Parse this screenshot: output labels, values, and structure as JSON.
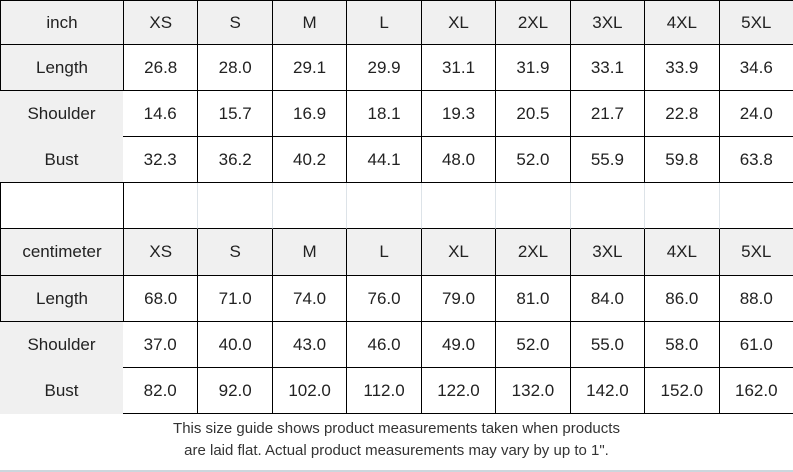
{
  "chart_data": [
    {
      "type": "table",
      "unit": "inch",
      "columns": [
        "XS",
        "S",
        "M",
        "L",
        "XL",
        "2XL",
        "3XL",
        "4XL",
        "5XL"
      ],
      "rows": [
        {
          "label": "Length",
          "values": [
            "26.8",
            "28.0",
            "29.1",
            "29.9",
            "31.1",
            "31.9",
            "33.1",
            "33.9",
            "34.6"
          ]
        },
        {
          "label": "Shoulder",
          "values": [
            "14.6",
            "15.7",
            "16.9",
            "18.1",
            "19.3",
            "20.5",
            "21.7",
            "22.8",
            "24.0"
          ]
        },
        {
          "label": "Bust",
          "values": [
            "32.3",
            "36.2",
            "40.2",
            "44.1",
            "48.0",
            "52.0",
            "55.9",
            "59.8",
            "63.8"
          ]
        }
      ]
    },
    {
      "type": "table",
      "unit": "centimeter",
      "columns": [
        "XS",
        "S",
        "M",
        "L",
        "XL",
        "2XL",
        "3XL",
        "4XL",
        "5XL"
      ],
      "rows": [
        {
          "label": "Length",
          "values": [
            "68.0",
            "71.0",
            "74.0",
            "76.0",
            "79.0",
            "81.0",
            "84.0",
            "86.0",
            "88.0"
          ]
        },
        {
          "label": "Shoulder",
          "values": [
            "37.0",
            "40.0",
            "43.0",
            "46.0",
            "49.0",
            "52.0",
            "55.0",
            "58.0",
            "61.0"
          ]
        },
        {
          "label": "Bust",
          "values": [
            "82.0",
            "92.0",
            "102.0",
            "112.0",
            "122.0",
            "132.0",
            "142.0",
            "152.0",
            "162.0"
          ]
        }
      ]
    }
  ],
  "footnote": {
    "line1": "This size guide shows product measurements taken when products",
    "line2": "are laid flat. Actual product measurements may vary by up to 1\"."
  },
  "colors": {
    "header_bg": "#f0f0f0",
    "grid_border": "#000000",
    "spacer_divider": "#dde3e8",
    "bottom_rule": "#ccd6dd",
    "text": "#222222"
  }
}
